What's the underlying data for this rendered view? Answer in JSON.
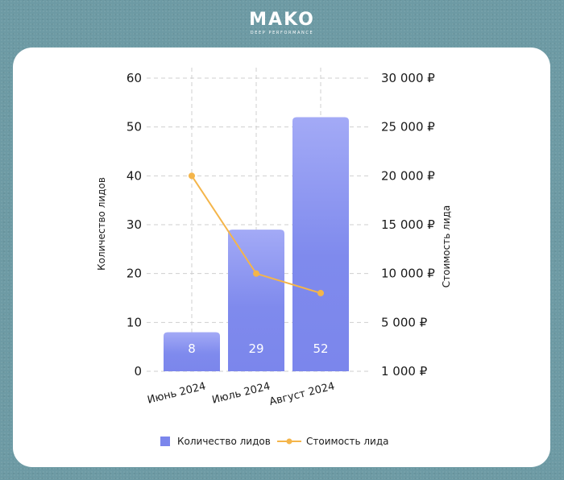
{
  "brand": {
    "name": "MAKO",
    "tagline": "DEEP PERFORMANCE"
  },
  "colors": {
    "background": "#6d9aa4",
    "bar_top": "#a3aaf6",
    "bar_bottom": "#7b86ec",
    "line": "#f4b54a",
    "grid": "#cfcfcf"
  },
  "chart_data": {
    "type": "bar",
    "categories": [
      "Июнь 2024",
      "Июль 2024",
      "Август 2024"
    ],
    "series": [
      {
        "name": "Количество лидов",
        "type": "bar",
        "axis": "left",
        "values": [
          8,
          29,
          52
        ]
      },
      {
        "name": "Стоимость лида",
        "type": "line",
        "axis": "right",
        "values": [
          20000,
          10000,
          8000
        ]
      }
    ],
    "ylabel": "Количество лидов",
    "ylabel_right": "Стоимость лида",
    "ylim": [
      0,
      60
    ],
    "y_ticks": [
      "0",
      "10",
      "20",
      "30",
      "40",
      "50",
      "60"
    ],
    "y_right_ticks": [
      "1 000 ₽",
      "5 000 ₽",
      "10 000 ₽",
      "15 000 ₽",
      "20 000 ₽",
      "25 000 ₽",
      "30 000 ₽"
    ],
    "bar_labels": [
      "8",
      "29",
      "52"
    ],
    "grid": true,
    "legend_position": "bottom",
    "legend": [
      "Количество лидов",
      "Стоимость лида"
    ]
  }
}
